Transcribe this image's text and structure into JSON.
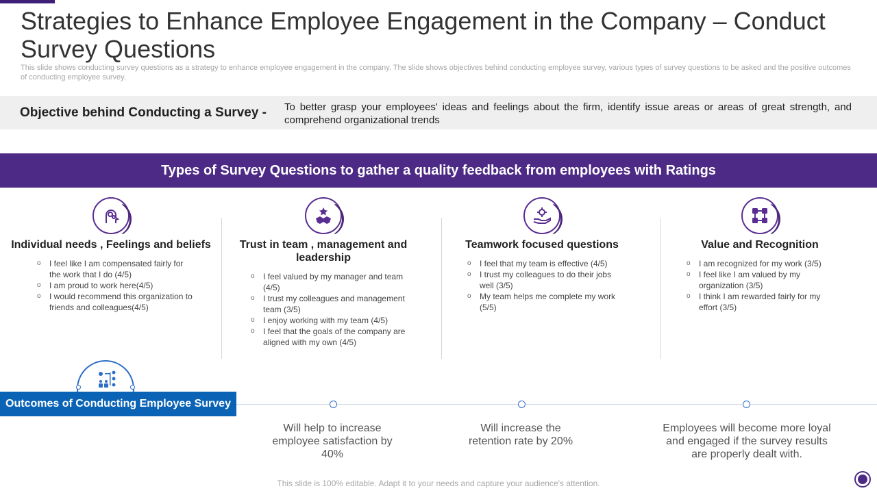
{
  "header": {
    "title": "Strategies to Enhance Employee Engagement in the Company – Conduct Survey Questions",
    "subtitle": "This slide shows conducting survey questions as a strategy to enhance employee engagement in the company. The slide shows objectives behind conducting employee survey, various types of survey questions to be asked and the positive outcomes of conducting employee survey."
  },
  "objective": {
    "label": "Objective behind Conducting a Survey -",
    "text": "To better grasp your employees' ideas and feelings about the firm, identify issue areas or areas of great strength, and comprehend organizational trends"
  },
  "types_banner": "Types of Survey Questions to gather a quality feedback from employees with Ratings",
  "columns": [
    {
      "icon": "head-gears-icon",
      "title": "Individual needs , Feelings and beliefs",
      "items": [
        "I feel like I am compensated fairly for the work that I do (4/5)",
        "I am proud to work here(4/5)",
        "I would recommend this organization to friends and colleagues(4/5)"
      ]
    },
    {
      "icon": "handshake-icon",
      "title": "Trust in team , management and leadership",
      "items": [
        "I feel valued by my manager and team (4/5)",
        "I trust my colleagues and management team (3/5)",
        "I enjoy working with my team (4/5)",
        "I feel that the goals of the company are aligned with my own (4/5)"
      ]
    },
    {
      "icon": "hand-gear-icon",
      "title": "Teamwork focused questions",
      "items": [
        "I feel that my team is effective (4/5)",
        "I trust my colleagues to do their jobs well (3/5)",
        "My team helps me complete my work (5/5)"
      ]
    },
    {
      "icon": "linked-squares-icon",
      "title": "Value and Recognition",
      "items": [
        "I am recognized for my work (3/5)",
        "I feel like I am valued by my organization (3/5)",
        "I think I am rewarded fairly for my effort (3/5)"
      ]
    }
  ],
  "outcomes": {
    "label": "Outcomes of Conducting Employee Survey",
    "icon": "team-network-icon",
    "items": [
      "Will help to increase employee satisfaction by 40%",
      "Will increase the retention rate by 20%",
      "Employees will become more loyal and engaged if the survey results are properly dealt with."
    ]
  },
  "footer": "This slide is 100% editable. Adapt it to your needs and capture your audience's attention.",
  "colors": {
    "purple": "#4d2a86",
    "blue": "#0b63b5",
    "grey_band": "#efefef"
  }
}
